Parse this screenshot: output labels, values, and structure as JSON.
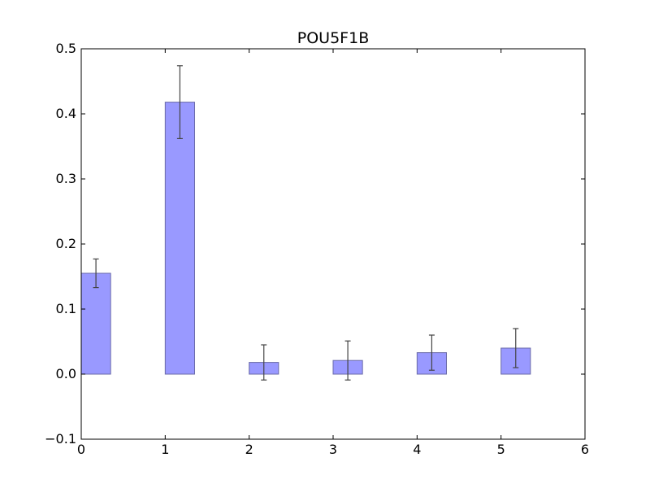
{
  "chart_data": {
    "type": "bar",
    "title": "POU5F1B",
    "xlabel": "",
    "ylabel": "",
    "xlim": [
      0,
      6
    ],
    "ylim": [
      -0.1,
      0.5
    ],
    "x_ticks": [
      0,
      1,
      2,
      3,
      4,
      5,
      6
    ],
    "x_tick_labels": [
      "0",
      "1",
      "2",
      "3",
      "4",
      "5",
      "6"
    ],
    "y_ticks": [
      -0.1,
      0.0,
      0.1,
      0.2,
      0.3,
      0.4,
      0.5
    ],
    "y_tick_labels": [
      "−0.1",
      "0.0",
      "0.1",
      "0.2",
      "0.3",
      "0.4",
      "0.5"
    ],
    "bar_width": 0.35,
    "bar_color": "#9999ff",
    "bar_edge_color": "#6a6aa8",
    "errorbar_color": "#444444",
    "grid": false,
    "bars": [
      {
        "x": 0,
        "value": 0.155,
        "error": 0.022
      },
      {
        "x": 1,
        "value": 0.418,
        "error": 0.056
      },
      {
        "x": 2,
        "value": 0.018,
        "error": 0.027
      },
      {
        "x": 3,
        "value": 0.021,
        "error": 0.03
      },
      {
        "x": 4,
        "value": 0.033,
        "error": 0.027
      },
      {
        "x": 5,
        "value": 0.04,
        "error": 0.03
      }
    ]
  }
}
